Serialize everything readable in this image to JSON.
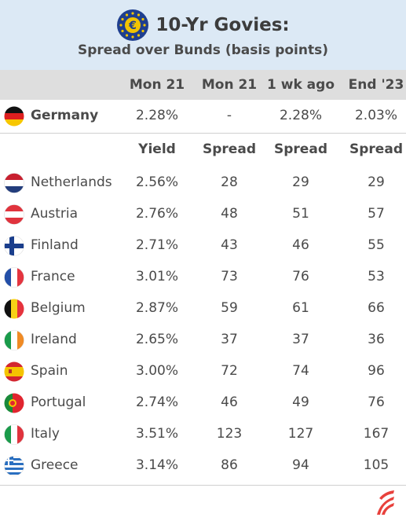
{
  "title": "10-Yr Govies:",
  "subtitle": "Spread over Bunds (basis points)",
  "columns": [
    "Mon 21",
    "Mon 21",
    "1 wk ago",
    "End '23"
  ],
  "benchmark": {
    "country": "Germany",
    "values": [
      "2.28%",
      "-",
      "2.28%",
      "2.03%"
    ]
  },
  "subheaders": [
    "Yield",
    "Spread",
    "Spread",
    "Spread"
  ],
  "rows": [
    {
      "country": "Netherlands",
      "yield": "2.56%",
      "spread": "28",
      "wk": "29",
      "end": "29"
    },
    {
      "country": "Austria",
      "yield": "2.76%",
      "spread": "48",
      "wk": "51",
      "end": "57"
    },
    {
      "country": "Finland",
      "yield": "2.71%",
      "spread": "43",
      "wk": "46",
      "end": "55"
    },
    {
      "country": "France",
      "yield": "3.01%",
      "spread": "73",
      "wk": "76",
      "end": "53"
    },
    {
      "country": "Belgium",
      "yield": "2.87%",
      "spread": "59",
      "wk": "61",
      "end": "66"
    },
    {
      "country": "Ireland",
      "yield": "2.65%",
      "spread": "37",
      "wk": "37",
      "end": "36"
    },
    {
      "country": "Spain",
      "yield": "3.00%",
      "spread": "72",
      "wk": "74",
      "end": "96"
    },
    {
      "country": "Portugal",
      "yield": "2.74%",
      "spread": "46",
      "wk": "49",
      "end": "76"
    },
    {
      "country": "Italy",
      "yield": "3.51%",
      "spread": "123",
      "wk": "127",
      "end": "167"
    },
    {
      "country": "Greece",
      "yield": "3.14%",
      "spread": "86",
      "wk": "94",
      "end": "105"
    }
  ],
  "colors": {
    "header_bg": "#dce9f5",
    "column_header_bg": "#dedede",
    "text": "#4a4a4a",
    "brand_red": "#e8413c"
  }
}
